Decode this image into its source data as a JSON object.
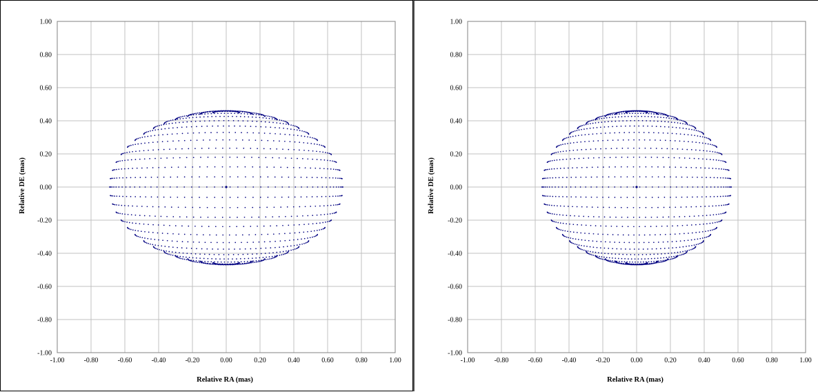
{
  "chart_data": [
    {
      "type": "scatter",
      "xlabel": "Relative RA (mas)",
      "ylabel": "Relative DE (mas)",
      "xlim": [
        -1.0,
        1.0
      ],
      "ylim": [
        -1.0,
        1.0
      ],
      "x_ticks": [
        "-1.00",
        "-0.80",
        "-0.60",
        "-0.40",
        "-0.20",
        "0.00",
        "0.20",
        "0.40",
        "0.60",
        "0.80",
        "1.00"
      ],
      "y_ticks": [
        "1.00",
        "0.80",
        "0.60",
        "0.40",
        "0.20",
        "0.00",
        "-0.20",
        "-0.40",
        "-0.60",
        "-0.80",
        "-1.00"
      ],
      "grid": true,
      "marker_color": "#000080",
      "surface": {
        "semi_axis_ra": 0.69,
        "semi_axis_de_north": 0.55,
        "semi_axis_de_south": 0.56,
        "latitude_rings": 28,
        "meridians": 48,
        "center": [
          0.0,
          0.0
        ]
      }
    },
    {
      "type": "scatter",
      "xlabel": "Relative RA (mas)",
      "ylabel": "Relative DE (mas)",
      "xlim": [
        -1.0,
        1.0
      ],
      "ylim": [
        -1.0,
        1.0
      ],
      "x_ticks": [
        "-1.00",
        "-0.80",
        "-0.60",
        "-0.40",
        "-0.20",
        "0.00",
        "0.20",
        "0.40",
        "0.60",
        "0.80",
        "1.00"
      ],
      "y_ticks": [
        "1.00",
        "0.80",
        "0.60",
        "0.40",
        "0.20",
        "0.00",
        "-0.20",
        "-0.40",
        "-0.60",
        "-0.80",
        "-1.00"
      ],
      "grid": true,
      "marker_color": "#000080",
      "surface": {
        "semi_axis_ra": 0.56,
        "semi_axis_de_north": 0.55,
        "semi_axis_de_south": 0.56,
        "latitude_rings": 28,
        "meridians": 48,
        "center": [
          0.0,
          0.0
        ]
      }
    }
  ]
}
